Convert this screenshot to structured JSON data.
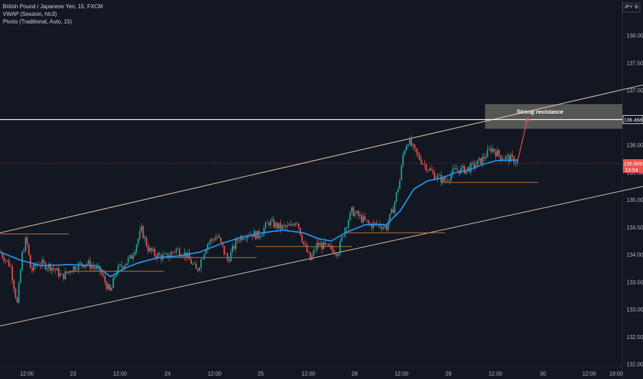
{
  "legend": {
    "line1": "British Pound / Japanese Yen, 15, FXCM",
    "line2": "VWAP (Session, hlc3)",
    "line3": "Pivots (Traditional, Auto, 15)"
  },
  "currency_badge": "JPY ⚙",
  "annotation": "Strong resistance",
  "price_labels": {
    "resistance": "136.468",
    "current": "135.669",
    "countdown": "13:54"
  },
  "colors": {
    "background": "#131722",
    "up_candle": "#26a69a",
    "down_candle": "#ef5350",
    "vwap": "#2196f3",
    "channel": "#e8c8b0",
    "pivot": "#c87533",
    "resistance_line": "#ffffff",
    "zone": "#6b6e64",
    "arrow": "#ef5350"
  },
  "chart_data": {
    "type": "candlestick",
    "symbol": "British Pound / Japanese Yen, 15, FXCM",
    "y_ticks": [
      "132.000",
      "132.500",
      "133.000",
      "133.500",
      "134.000",
      "134.500",
      "135.000",
      "135.500",
      "136.000",
      "136.500",
      "137.000",
      "137.500",
      "138.000"
    ],
    "x_ticks": [
      "12:00",
      "23",
      "12:00",
      "24",
      "12:00",
      "25",
      "12:00",
      "28",
      "12:00",
      "29",
      "12:00",
      "30",
      "12:00",
      "19:00"
    ],
    "ylim": [
      131.87,
      138.55
    ],
    "price_path": [
      [
        0,
        134.05
      ],
      [
        15,
        133.8
      ],
      [
        25,
        133.1
      ],
      [
        32,
        134.0
      ],
      [
        38,
        134.3
      ],
      [
        45,
        133.7
      ],
      [
        55,
        133.85
      ],
      [
        75,
        133.78
      ],
      [
        90,
        133.6
      ],
      [
        110,
        133.8
      ],
      [
        125,
        133.85
      ],
      [
        145,
        133.7
      ],
      [
        160,
        133.3
      ],
      [
        168,
        133.7
      ],
      [
        190,
        133.95
      ],
      [
        205,
        134.45
      ],
      [
        215,
        134.1
      ],
      [
        225,
        134.0
      ],
      [
        240,
        133.95
      ],
      [
        255,
        134.1
      ],
      [
        270,
        134.0
      ],
      [
        285,
        133.7
      ],
      [
        300,
        134.2
      ],
      [
        315,
        134.35
      ],
      [
        330,
        133.9
      ],
      [
        345,
        134.3
      ],
      [
        360,
        134.4
      ],
      [
        375,
        134.35
      ],
      [
        390,
        134.6
      ],
      [
        405,
        134.5
      ],
      [
        420,
        134.5
      ],
      [
        430,
        134.65
      ],
      [
        440,
        134.2
      ],
      [
        450,
        133.9
      ],
      [
        460,
        134.2
      ],
      [
        470,
        134.15
      ],
      [
        480,
        134.1
      ],
      [
        490,
        134.05
      ],
      [
        500,
        134.5
      ],
      [
        510,
        134.8
      ],
      [
        520,
        134.7
      ],
      [
        535,
        134.55
      ],
      [
        550,
        134.55
      ],
      [
        560,
        134.5
      ],
      [
        570,
        134.85
      ],
      [
        580,
        135.4
      ],
      [
        585,
        135.9
      ],
      [
        592,
        136.1
      ],
      [
        600,
        135.9
      ],
      [
        615,
        135.65
      ],
      [
        630,
        135.45
      ],
      [
        645,
        135.35
      ],
      [
        660,
        135.55
      ],
      [
        675,
        135.55
      ],
      [
        690,
        135.65
      ],
      [
        700,
        135.75
      ],
      [
        712,
        135.95
      ],
      [
        725,
        135.8
      ],
      [
        740,
        135.75
      ],
      [
        750,
        135.7
      ]
    ],
    "vwap": [
      [
        0,
        134.05
      ],
      [
        30,
        133.9
      ],
      [
        60,
        133.8
      ],
      [
        100,
        133.82
      ],
      [
        140,
        133.8
      ],
      [
        160,
        133.6
      ],
      [
        180,
        133.75
      ],
      [
        200,
        133.85
      ],
      [
        230,
        133.95
      ],
      [
        260,
        133.98
      ],
      [
        290,
        134.05
      ],
      [
        320,
        134.2
      ],
      [
        350,
        134.32
      ],
      [
        380,
        134.4
      ],
      [
        410,
        134.45
      ],
      [
        440,
        134.4
      ],
      [
        460,
        134.3
      ],
      [
        480,
        134.25
      ],
      [
        500,
        134.4
      ],
      [
        530,
        134.55
      ],
      [
        560,
        134.55
      ],
      [
        580,
        134.8
      ],
      [
        600,
        135.2
      ],
      [
        620,
        135.35
      ],
      [
        640,
        135.4
      ],
      [
        660,
        135.5
      ],
      [
        680,
        135.55
      ],
      [
        700,
        135.65
      ],
      [
        720,
        135.72
      ],
      [
        750,
        135.73
      ]
    ],
    "channel_upper": [
      [
        0,
        134.4
      ],
      [
        932,
        137.1
      ]
    ],
    "channel_lower": [
      [
        0,
        132.7
      ],
      [
        932,
        135.25
      ]
    ],
    "resistance_level": 136.468,
    "last_price": 135.669,
    "pivot_levels": [
      {
        "x": [
          0,
          100
        ],
        "y": 134.38
      },
      {
        "x": [
          100,
          237
        ],
        "y": 133.7
      },
      {
        "x": [
          230,
          372
        ],
        "y": 133.95
      },
      {
        "x": [
          370,
          510
        ],
        "y": 134.15
      },
      {
        "x": [
          500,
          645
        ],
        "y": 134.4
      },
      {
        "x": [
          640,
          780
        ],
        "y": 135.32
      }
    ],
    "resistance_zone": {
      "x": [
        703,
        902
      ],
      "y": [
        136.3,
        136.75
      ]
    },
    "arrow": {
      "from": [
        750,
        135.7
      ],
      "to": [
        765,
        136.5
      ]
    }
  }
}
